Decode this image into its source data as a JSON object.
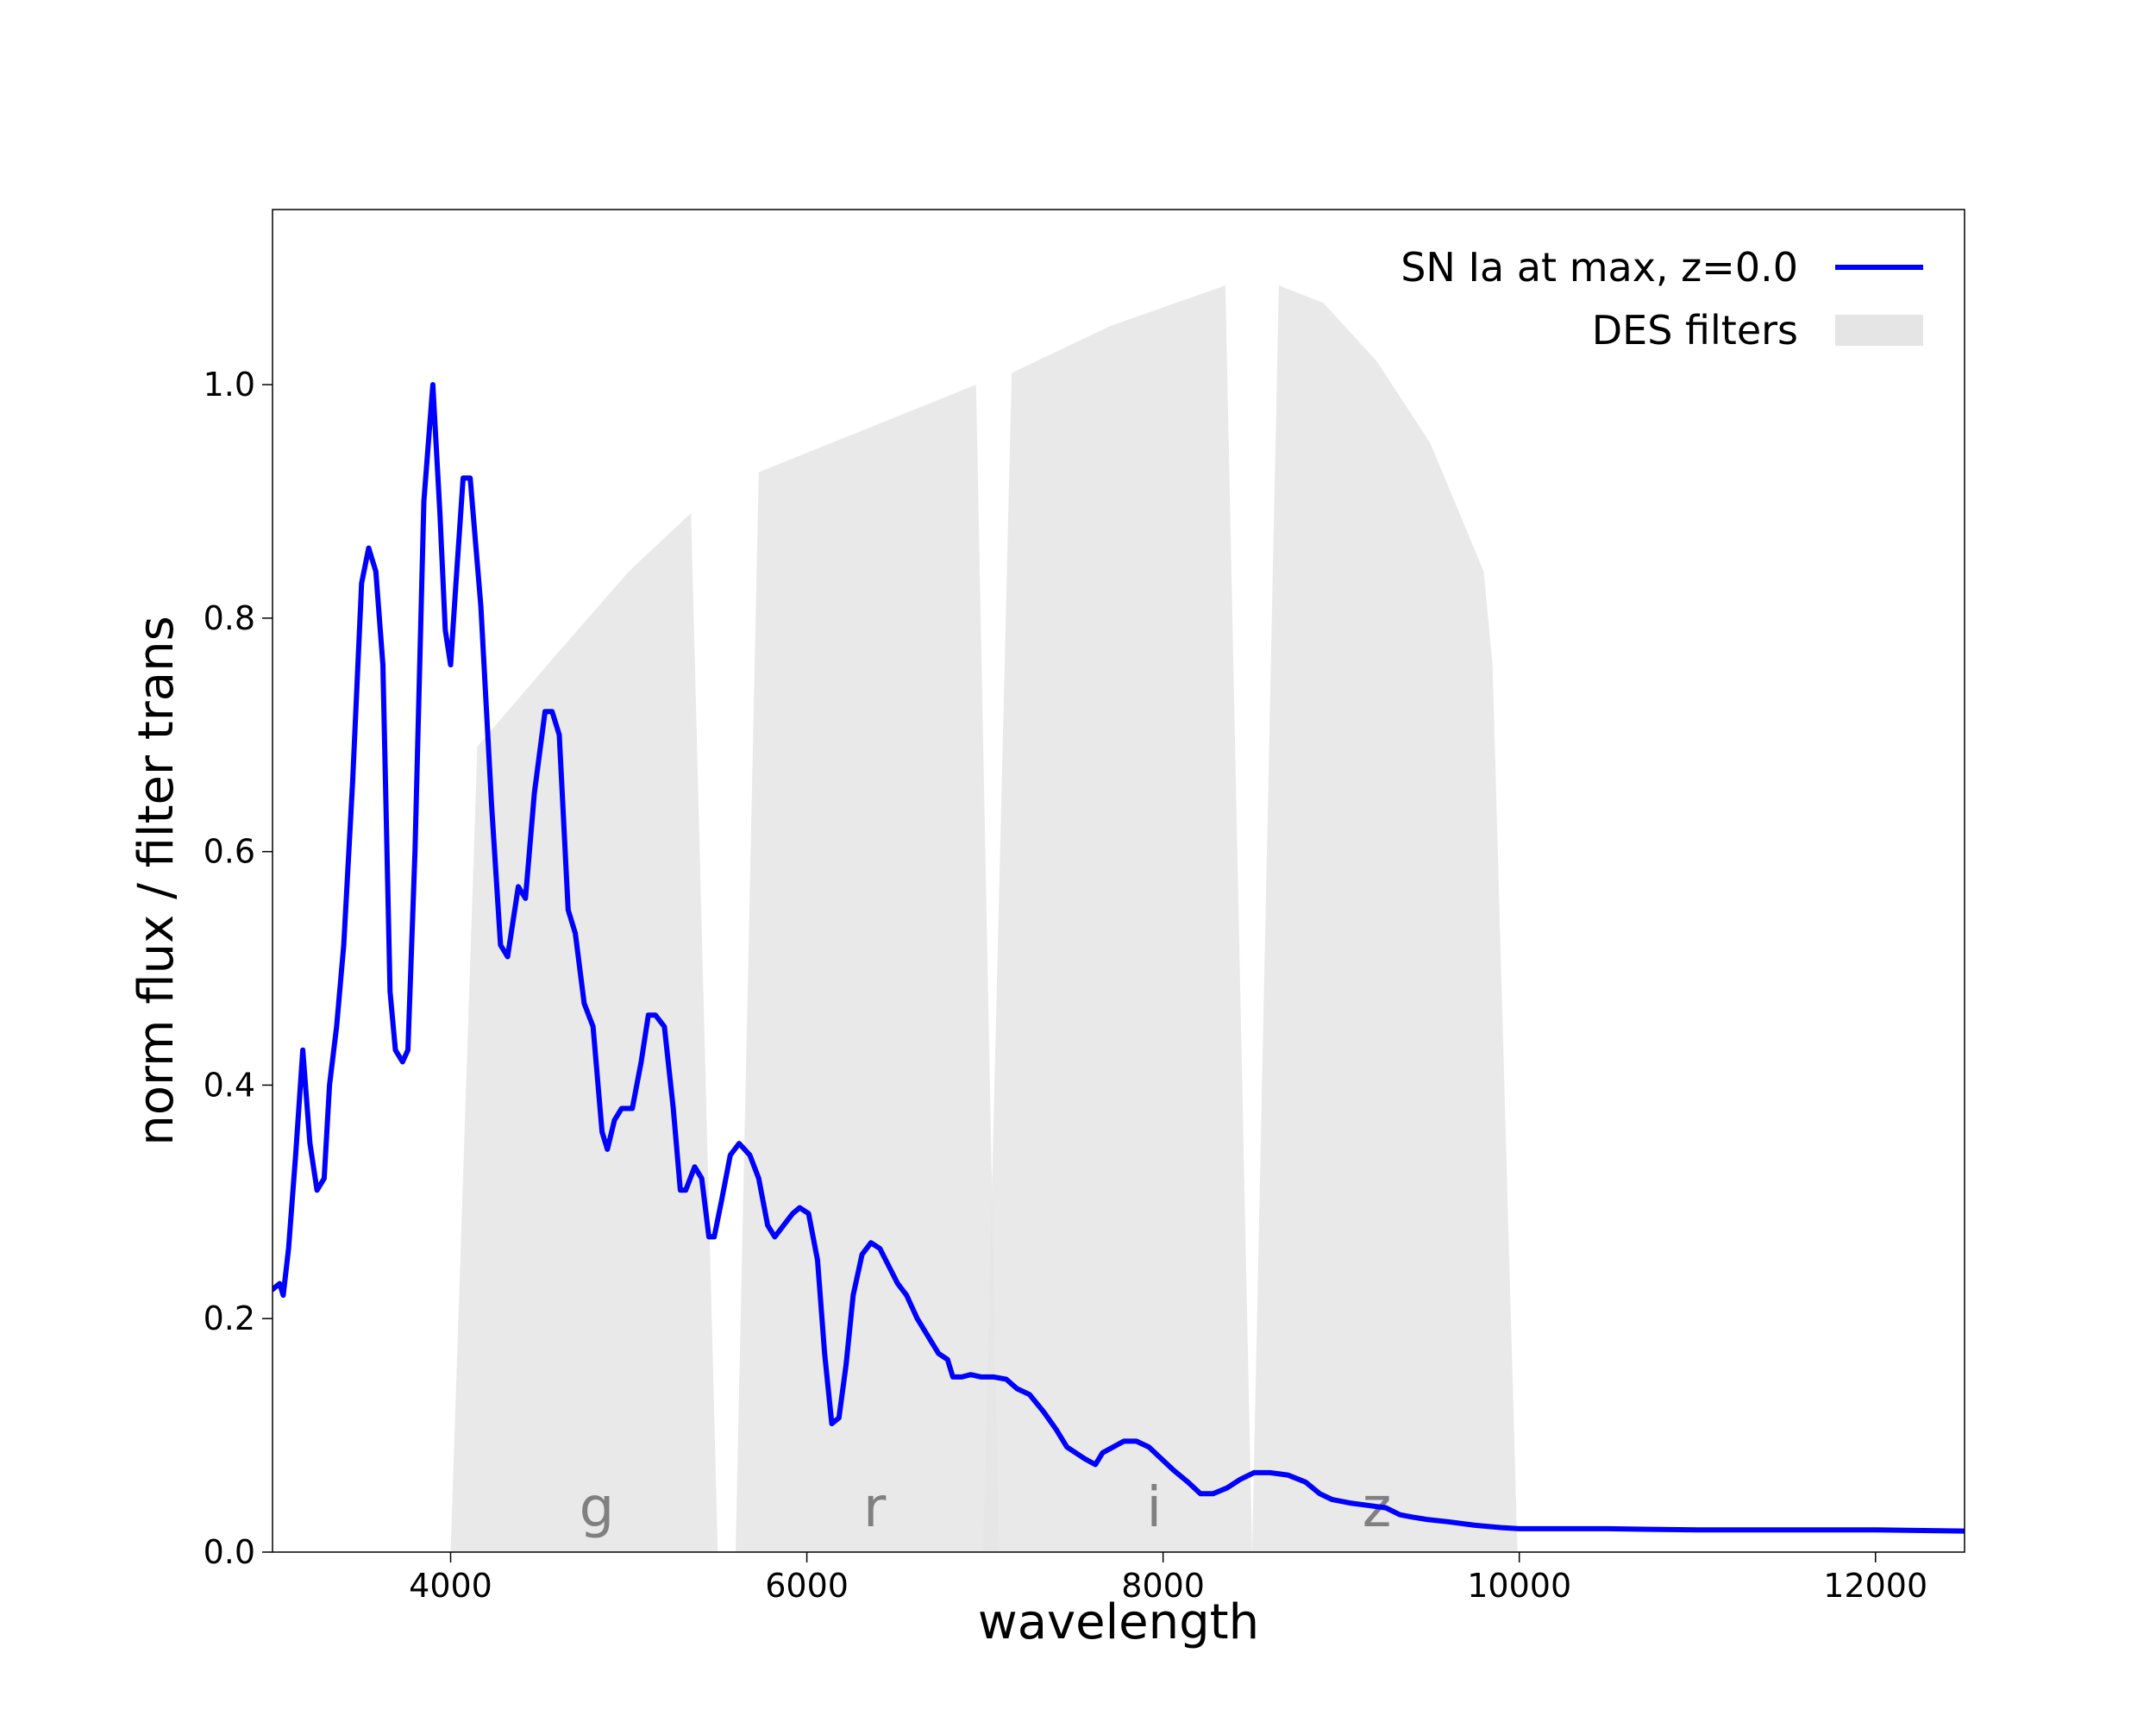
{
  "chart_data": {
    "type": "line",
    "title": "",
    "xlabel": "wavelength",
    "ylabel": "norm flux  /  filter trans",
    "xlim": [
      3000,
      12500
    ],
    "ylim": [
      0.0,
      1.15
    ],
    "xticks": [
      4000,
      6000,
      8000,
      10000,
      12000
    ],
    "xtick_labels": [
      "4000",
      "6000",
      "8000",
      "10000",
      "12000"
    ],
    "yticks": [
      0.0,
      0.2,
      0.4,
      0.6,
      0.8,
      1.0
    ],
    "ytick_labels": [
      "0.0",
      "0.2",
      "0.4",
      "0.6",
      "0.8",
      "1.0"
    ],
    "grid": false,
    "legend": {
      "position": "top-right",
      "entries": [
        {
          "label": "SN Ia at max, z=0.0",
          "kind": "line",
          "color": "#0000ff"
        },
        {
          "label": "DES filters",
          "kind": "patch",
          "color": "#e5e5e5"
        }
      ]
    },
    "filter_color": "#e5e5e5",
    "filter_label_color": "#808080",
    "filters": [
      {
        "name": "g",
        "label_x": 4820,
        "points": [
          [
            4000,
            0.0
          ],
          [
            4150,
            0.69
          ],
          [
            4600,
            0.77
          ],
          [
            5000,
            0.84
          ],
          [
            5350,
            0.89
          ],
          [
            5500,
            0.0
          ]
        ]
      },
      {
        "name": "r",
        "label_x": 6380,
        "points": [
          [
            5600,
            0.0
          ],
          [
            5730,
            0.925
          ],
          [
            6300,
            0.96
          ],
          [
            6950,
            1.0
          ],
          [
            7080,
            0.0
          ]
        ]
      },
      {
        "name": "i",
        "label_x": 7950,
        "points": [
          [
            6990,
            0.0
          ],
          [
            7150,
            1.01
          ],
          [
            7700,
            1.05
          ],
          [
            8350,
            1.085
          ],
          [
            8500,
            0.0
          ]
        ]
      },
      {
        "name": "z",
        "label_x": 9200,
        "points": [
          [
            8500,
            0.0
          ],
          [
            8650,
            1.085
          ],
          [
            8900,
            1.07
          ],
          [
            9200,
            1.02
          ],
          [
            9500,
            0.95
          ],
          [
            9800,
            0.84
          ],
          [
            9850,
            0.76
          ],
          [
            9990,
            0.0
          ]
        ]
      }
    ],
    "series": [
      {
        "name": "SN Ia at max, z=0.0",
        "color": "#0000ff",
        "points": [
          [
            3000,
            0.225
          ],
          [
            3040,
            0.23
          ],
          [
            3060,
            0.22
          ],
          [
            3090,
            0.26
          ],
          [
            3130,
            0.34
          ],
          [
            3170,
            0.43
          ],
          [
            3210,
            0.35
          ],
          [
            3250,
            0.31
          ],
          [
            3290,
            0.32
          ],
          [
            3320,
            0.4
          ],
          [
            3360,
            0.45
          ],
          [
            3400,
            0.52
          ],
          [
            3450,
            0.66
          ],
          [
            3500,
            0.83
          ],
          [
            3540,
            0.86
          ],
          [
            3580,
            0.84
          ],
          [
            3620,
            0.76
          ],
          [
            3660,
            0.48
          ],
          [
            3690,
            0.43
          ],
          [
            3730,
            0.42
          ],
          [
            3760,
            0.43
          ],
          [
            3800,
            0.6
          ],
          [
            3850,
            0.9
          ],
          [
            3900,
            1.0
          ],
          [
            3940,
            0.89
          ],
          [
            3970,
            0.79
          ],
          [
            4000,
            0.76
          ],
          [
            4030,
            0.83
          ],
          [
            4070,
            0.92
          ],
          [
            4110,
            0.92
          ],
          [
            4170,
            0.81
          ],
          [
            4230,
            0.64
          ],
          [
            4280,
            0.52
          ],
          [
            4320,
            0.51
          ],
          [
            4380,
            0.57
          ],
          [
            4420,
            0.56
          ],
          [
            4470,
            0.65
          ],
          [
            4530,
            0.72
          ],
          [
            4570,
            0.72
          ],
          [
            4610,
            0.7
          ],
          [
            4660,
            0.55
          ],
          [
            4700,
            0.53
          ],
          [
            4750,
            0.47
          ],
          [
            4800,
            0.45
          ],
          [
            4850,
            0.36
          ],
          [
            4880,
            0.345
          ],
          [
            4920,
            0.37
          ],
          [
            4960,
            0.38
          ],
          [
            5020,
            0.38
          ],
          [
            5070,
            0.42
          ],
          [
            5110,
            0.46
          ],
          [
            5150,
            0.46
          ],
          [
            5200,
            0.45
          ],
          [
            5250,
            0.38
          ],
          [
            5290,
            0.31
          ],
          [
            5320,
            0.31
          ],
          [
            5370,
            0.33
          ],
          [
            5410,
            0.32
          ],
          [
            5450,
            0.27
          ],
          [
            5480,
            0.27
          ],
          [
            5520,
            0.3
          ],
          [
            5570,
            0.34
          ],
          [
            5620,
            0.35
          ],
          [
            5680,
            0.34
          ],
          [
            5730,
            0.32
          ],
          [
            5780,
            0.28
          ],
          [
            5820,
            0.27
          ],
          [
            5870,
            0.28
          ],
          [
            5920,
            0.29
          ],
          [
            5960,
            0.295
          ],
          [
            6010,
            0.29
          ],
          [
            6060,
            0.25
          ],
          [
            6100,
            0.17
          ],
          [
            6140,
            0.11
          ],
          [
            6180,
            0.115
          ],
          [
            6220,
            0.16
          ],
          [
            6260,
            0.22
          ],
          [
            6310,
            0.255
          ],
          [
            6360,
            0.265
          ],
          [
            6410,
            0.26
          ],
          [
            6460,
            0.245
          ],
          [
            6510,
            0.23
          ],
          [
            6560,
            0.22
          ],
          [
            6620,
            0.2
          ],
          [
            6680,
            0.185
          ],
          [
            6740,
            0.17
          ],
          [
            6790,
            0.165
          ],
          [
            6820,
            0.15
          ],
          [
            6870,
            0.15
          ],
          [
            6920,
            0.152
          ],
          [
            6980,
            0.15
          ],
          [
            7050,
            0.15
          ],
          [
            7120,
            0.148
          ],
          [
            7180,
            0.14
          ],
          [
            7250,
            0.135
          ],
          [
            7330,
            0.12
          ],
          [
            7400,
            0.105
          ],
          [
            7460,
            0.09
          ],
          [
            7510,
            0.085
          ],
          [
            7560,
            0.08
          ],
          [
            7620,
            0.075
          ],
          [
            7660,
            0.085
          ],
          [
            7720,
            0.09
          ],
          [
            7780,
            0.095
          ],
          [
            7850,
            0.095
          ],
          [
            7920,
            0.09
          ],
          [
            7990,
            0.08
          ],
          [
            8060,
            0.07
          ],
          [
            8140,
            0.06
          ],
          [
            8210,
            0.05
          ],
          [
            8280,
            0.05
          ],
          [
            8360,
            0.055
          ],
          [
            8430,
            0.062
          ],
          [
            8510,
            0.068
          ],
          [
            8600,
            0.068
          ],
          [
            8700,
            0.066
          ],
          [
            8800,
            0.06
          ],
          [
            8880,
            0.05
          ],
          [
            8950,
            0.045
          ],
          [
            9050,
            0.042
          ],
          [
            9150,
            0.04
          ],
          [
            9250,
            0.038
          ],
          [
            9330,
            0.032
          ],
          [
            9400,
            0.03
          ],
          [
            9480,
            0.028
          ],
          [
            9600,
            0.026
          ],
          [
            9750,
            0.023
          ],
          [
            9900,
            0.021
          ],
          [
            10000,
            0.02
          ],
          [
            10500,
            0.02
          ],
          [
            11000,
            0.019
          ],
          [
            11500,
            0.019
          ],
          [
            12000,
            0.019
          ],
          [
            12500,
            0.018
          ]
        ]
      }
    ]
  }
}
